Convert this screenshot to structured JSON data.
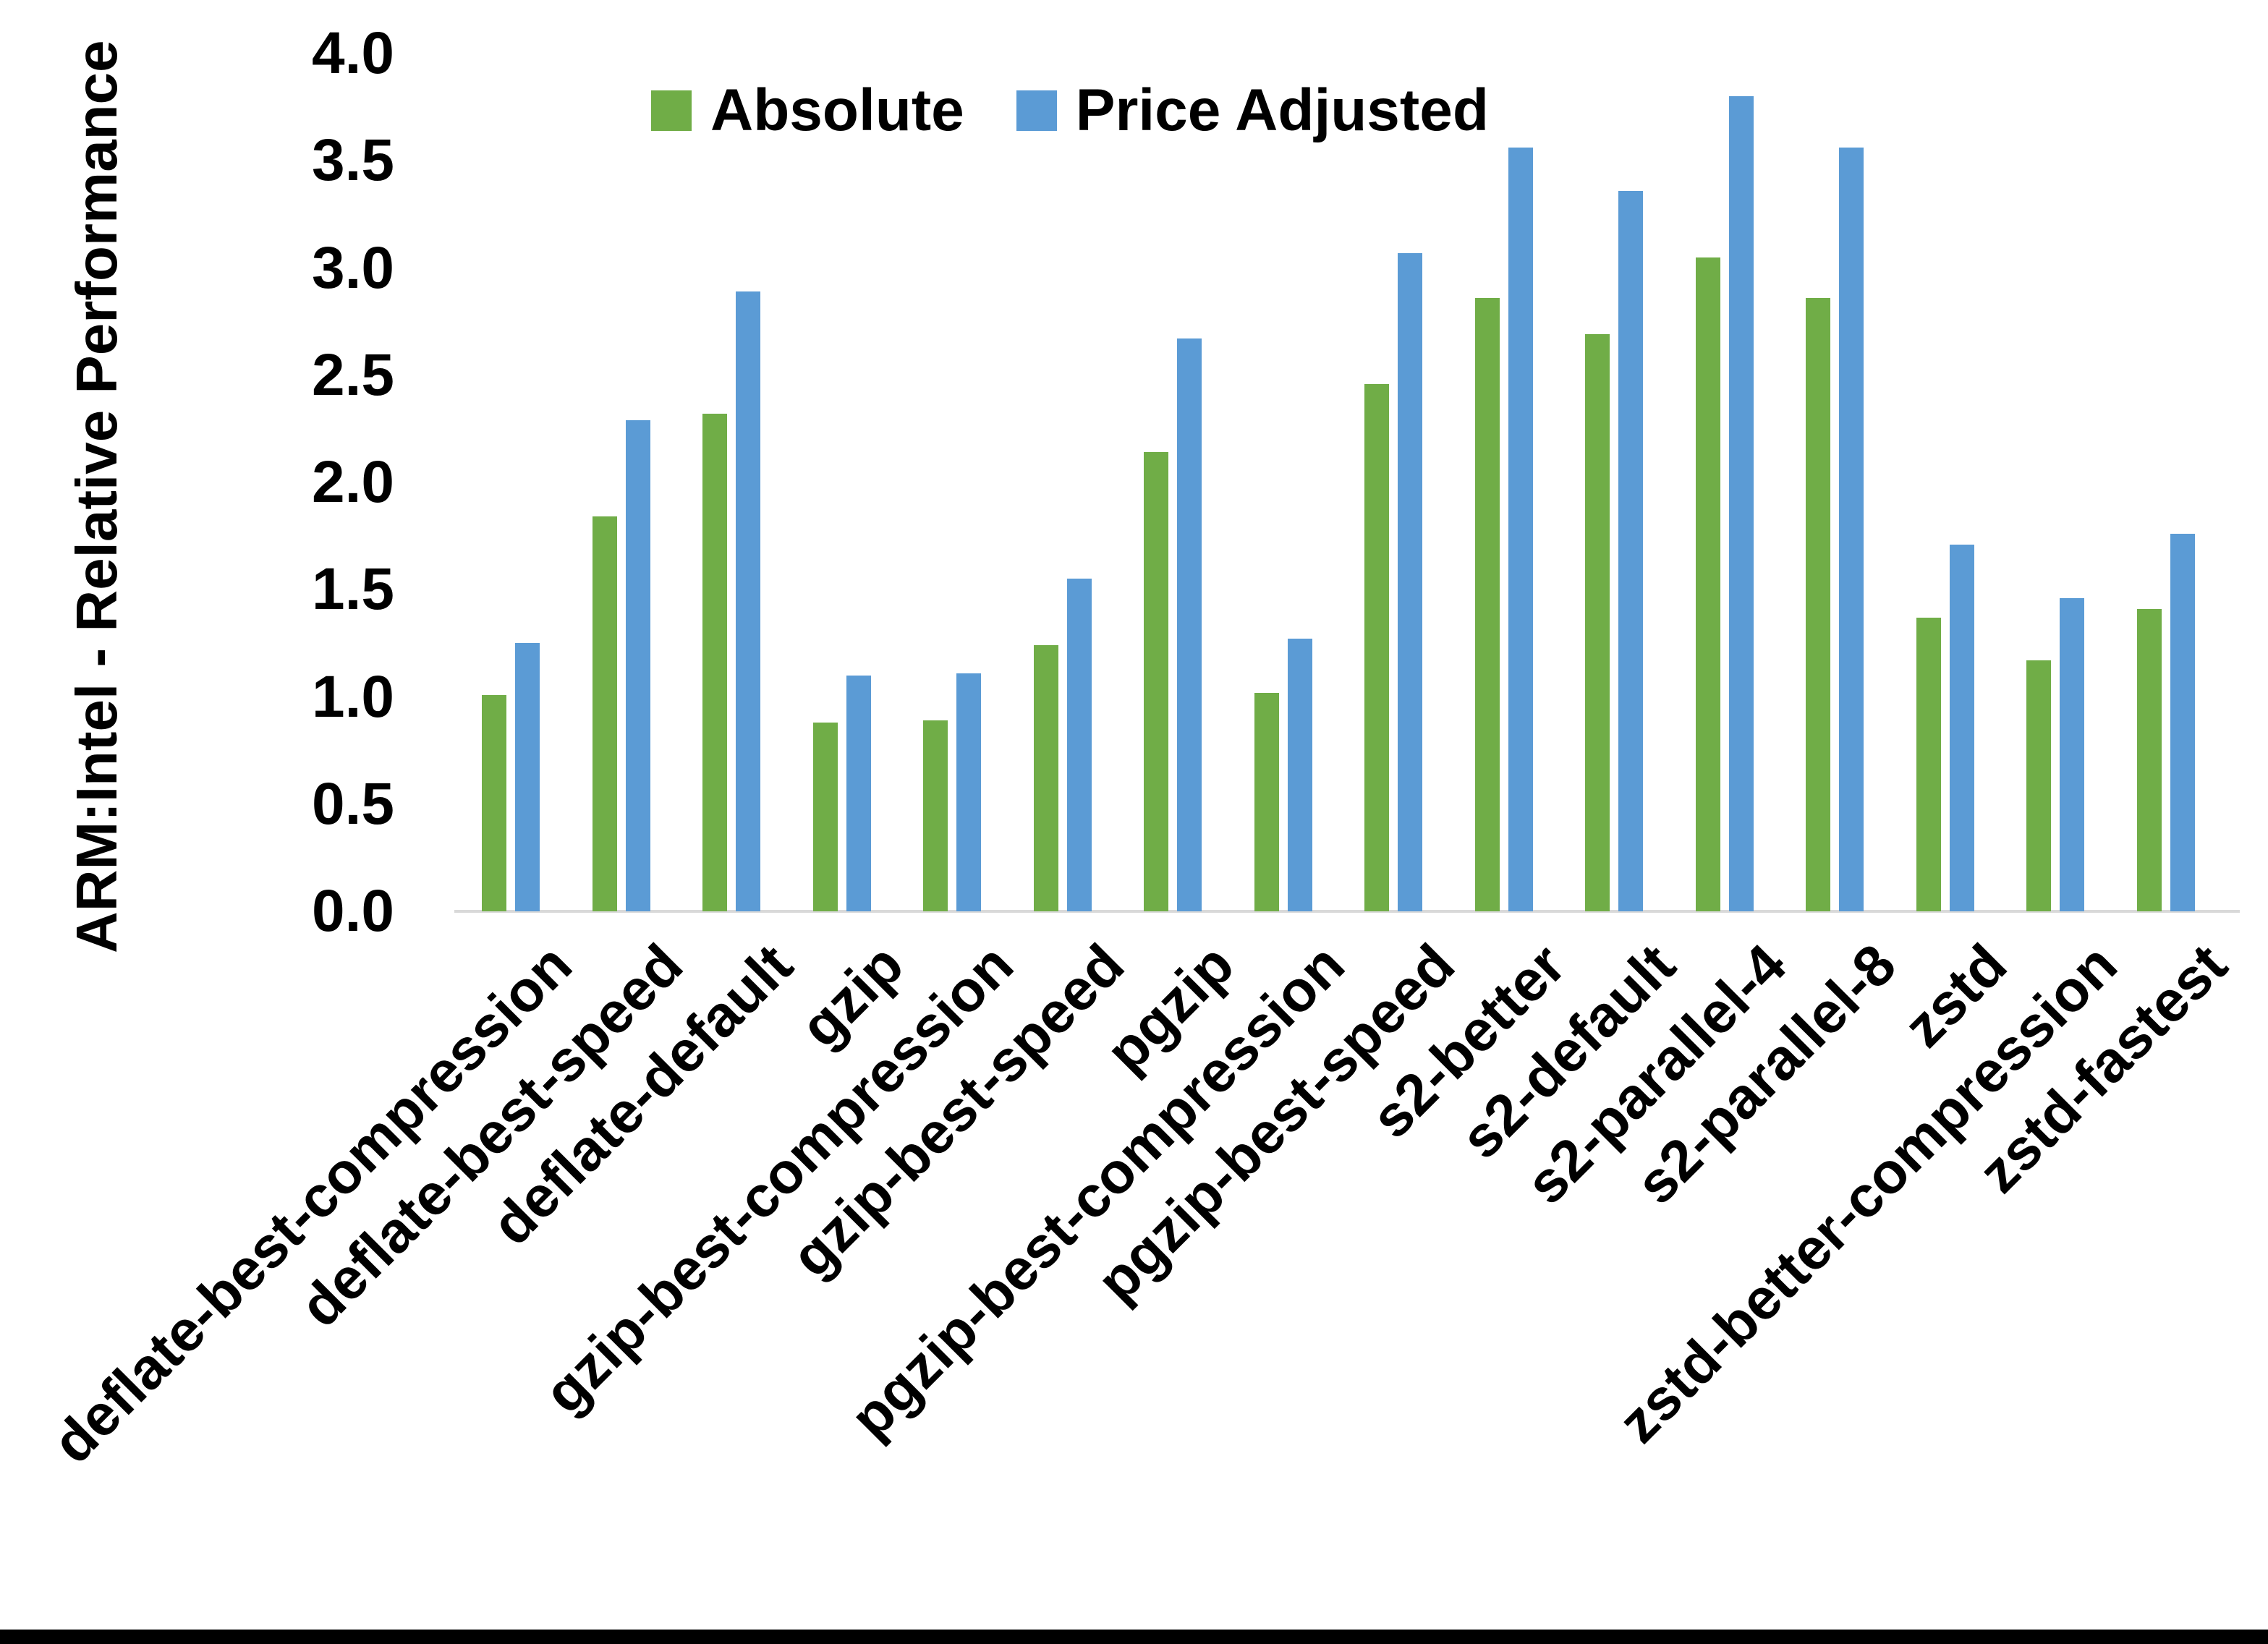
{
  "page": {
    "background_color": "#ffffff",
    "bottom_border_color": "#000000"
  },
  "chart_data": {
    "type": "bar",
    "title": "",
    "xlabel": "",
    "ylabel": "ARM:Intel - Relative Performance",
    "ylim": [
      0.0,
      4.0
    ],
    "ytick_step": 0.5,
    "yticks": [
      "0.0",
      "0.5",
      "1.0",
      "1.5",
      "2.0",
      "2.5",
      "3.0",
      "3.5",
      "4.0"
    ],
    "grid": false,
    "legend_position": "top-center",
    "axis_line_color": "#d9d9d9",
    "text_color": "#000000",
    "categories": [
      "deflate-best-compression",
      "deflate-best-speed",
      "deflate-default",
      "gzip",
      "gzip-best-compression",
      "gzip-best-speed",
      "pgzip",
      "pgzip-best-compression",
      "pgzip-best-speed",
      "s2-better",
      "s2-default",
      "s2-parallel-4",
      "s2-parallel-8",
      "zstd",
      "zstd-better-compression",
      "zstd-fastest"
    ],
    "series": [
      {
        "name": "Absolute",
        "color": "#70AD47",
        "values": [
          1.01,
          1.84,
          2.32,
          0.88,
          0.89,
          1.24,
          2.14,
          1.02,
          2.46,
          2.86,
          2.69,
          3.05,
          2.86,
          1.37,
          1.17,
          1.41
        ]
      },
      {
        "name": "Price Adjusted",
        "color": "#5B9BD5",
        "values": [
          1.25,
          2.29,
          2.89,
          1.1,
          1.11,
          1.55,
          2.67,
          1.27,
          3.07,
          3.56,
          3.36,
          3.8,
          3.56,
          1.71,
          1.46,
          1.76
        ]
      }
    ]
  }
}
